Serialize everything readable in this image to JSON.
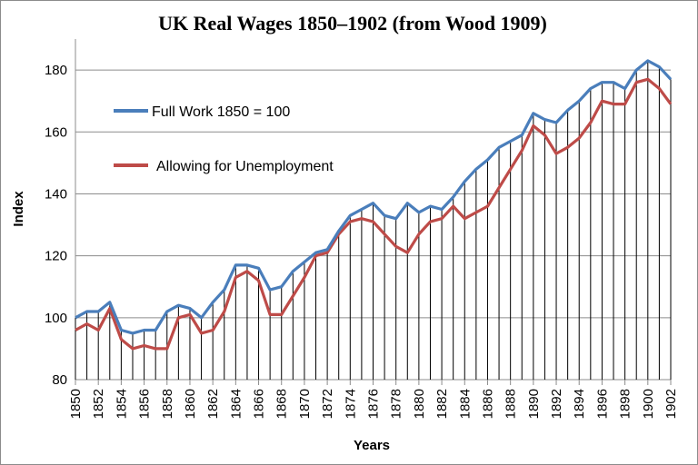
{
  "chart_data": {
    "type": "line",
    "title": "UK Real Wages 1850–1902 (from Wood 1909)",
    "xlabel": "Years",
    "ylabel": "Index",
    "ylim": [
      80,
      190
    ],
    "yticks": [
      80,
      100,
      120,
      140,
      160,
      180
    ],
    "xlim": [
      1850,
      1902
    ],
    "xtick_labels": [
      "1850",
      "1852",
      "1854",
      "1856",
      "1858",
      "1860",
      "1862",
      "1864",
      "1866",
      "1868",
      "1870",
      "1872",
      "1874",
      "1876",
      "1878",
      "1880",
      "1882",
      "1884",
      "1886",
      "1888",
      "1890",
      "1892",
      "1894",
      "1896",
      "1898",
      "1900",
      "1902"
    ],
    "grid": "horizontal",
    "drop_lines": true,
    "legend_position": "upper-left",
    "x": [
      1850,
      1851,
      1852,
      1853,
      1854,
      1855,
      1856,
      1857,
      1858,
      1859,
      1860,
      1861,
      1862,
      1863,
      1864,
      1865,
      1866,
      1867,
      1868,
      1869,
      1870,
      1871,
      1872,
      1873,
      1874,
      1875,
      1876,
      1877,
      1878,
      1879,
      1880,
      1881,
      1882,
      1883,
      1884,
      1885,
      1886,
      1887,
      1888,
      1889,
      1890,
      1891,
      1892,
      1893,
      1894,
      1895,
      1896,
      1897,
      1898,
      1899,
      1900,
      1901,
      1902
    ],
    "series": [
      {
        "name": "Full Work 1850 = 100",
        "color": "#4a7ebb",
        "values": [
          100,
          102,
          102,
          105,
          96,
          95,
          96,
          96,
          102,
          104,
          103,
          100,
          105,
          109,
          117,
          117,
          116,
          109,
          110,
          115,
          118,
          121,
          122,
          128,
          133,
          135,
          137,
          133,
          132,
          137,
          134,
          136,
          135,
          139,
          144,
          148,
          151,
          155,
          157,
          159,
          166,
          164,
          163,
          167,
          170,
          174,
          176,
          176,
          174,
          180,
          183,
          181,
          177
        ]
      },
      {
        "name": "Allowing for Unemployment",
        "color": "#be4b48",
        "values": [
          96,
          98,
          96,
          103,
          93,
          90,
          91,
          90,
          90,
          100,
          101,
          95,
          96,
          102,
          113,
          115,
          112,
          101,
          101,
          107,
          113,
          120,
          121,
          127,
          131,
          132,
          131,
          127,
          123,
          121,
          127,
          131,
          132,
          136,
          132,
          134,
          136,
          142,
          148,
          154,
          162,
          159,
          153,
          155,
          158,
          163,
          170,
          169,
          169,
          176,
          177,
          174,
          169
        ]
      }
    ]
  }
}
